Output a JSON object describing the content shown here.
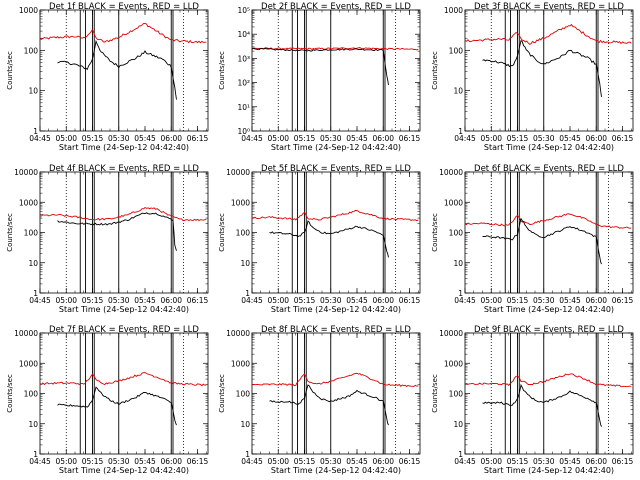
{
  "figure": {
    "xlabel": "Start Time (24-Sep-12 04:42:40)",
    "ylabel": "Counts/sec",
    "series_colors": {
      "events": "#000000",
      "lld": "#e00000"
    }
  },
  "chart_data": [
    {
      "type": "line",
      "title": "Det 1f BLACK = Events, RED = LLD",
      "xlabel": "Start Time (24-Sep-12 04:42:40)",
      "ylabel": "Counts/sec",
      "x_ticks": [
        "04:45",
        "05:00",
        "05:15",
        "05:30",
        "05:45",
        "06:00",
        "06:15"
      ],
      "xlim": [
        "04:45",
        "06:21"
      ],
      "y_scale": "log",
      "y_ticks": [
        "1",
        "10",
        "100",
        "1000"
      ],
      "ylim": [
        1,
        1000
      ],
      "dotted_vlines": [
        "05:00",
        "06:07"
      ],
      "solid_vlines": [
        "05:08",
        "05:11",
        "05:15",
        "05:16",
        "05:30",
        "06:00",
        "06:01"
      ],
      "series": [
        {
          "color": "#e00000",
          "x": [
            "04:45",
            "04:55",
            "05:05",
            "05:10",
            "05:15",
            "05:17",
            "05:22",
            "05:30",
            "05:45",
            "05:55",
            "06:00",
            "06:05",
            "06:10",
            "06:15",
            "06:20"
          ],
          "values": [
            190,
            210,
            220,
            200,
            310,
            200,
            160,
            210,
            460,
            240,
            180,
            170,
            165,
            160,
            160
          ]
        },
        {
          "color": "#000000",
          "x": [
            "04:55",
            "05:00",
            "05:05",
            "05:08",
            "05:12",
            "05:15",
            "05:17",
            "05:20",
            "05:25",
            "05:30",
            "05:40",
            "05:45",
            "05:55",
            "06:00",
            "06:02",
            "06:03"
          ],
          "values": [
            52,
            50,
            45,
            40,
            35,
            60,
            170,
            90,
            55,
            40,
            65,
            90,
            60,
            40,
            12,
            6
          ]
        }
      ]
    },
    {
      "type": "line",
      "title": "Det 2f BLACK = Events, RED = LLD",
      "xlabel": "Start Time (24-Sep-12 04:42:40)",
      "ylabel": "Counts/sec",
      "x_ticks": [
        "04:45",
        "05:00",
        "05:15",
        "05:30",
        "05:45",
        "06:00",
        "06:15"
      ],
      "xlim": [
        "04:45",
        "06:21"
      ],
      "y_scale": "log",
      "y_ticks": [
        "10⁰",
        "10¹",
        "10²",
        "10³",
        "10⁴",
        "10⁵"
      ],
      "ylim": [
        1,
        100000
      ],
      "dotted_vlines": [
        "05:00",
        "06:07"
      ],
      "solid_vlines": [
        "05:08",
        "05:11",
        "05:15",
        "05:16",
        "05:30",
        "06:00",
        "06:01"
      ],
      "series": [
        {
          "color": "#e00000",
          "x": [
            "04:45",
            "05:00",
            "05:15",
            "05:30",
            "05:45",
            "06:00",
            "06:15",
            "06:20"
          ],
          "values": [
            2600,
            2550,
            2500,
            2550,
            2700,
            2500,
            2400,
            2400
          ]
        },
        {
          "color": "#000000",
          "x": [
            "04:45",
            "05:00",
            "05:15",
            "05:30",
            "05:45",
            "06:00",
            "06:02",
            "06:03"
          ],
          "values": [
            2500,
            2300,
            2100,
            2300,
            2400,
            2200,
            200,
            80
          ]
        }
      ]
    },
    {
      "type": "line",
      "title": "Det 3f BLACK = Events, RED = LLD",
      "xlabel": "Start Time (24-Sep-12 04:42:40)",
      "ylabel": "Counts/sec",
      "x_ticks": [
        "04:45",
        "05:00",
        "05:15",
        "05:30",
        "05:45",
        "06:00",
        "06:15"
      ],
      "xlim": [
        "04:45",
        "06:21"
      ],
      "y_scale": "log",
      "y_ticks": [
        "1",
        "10",
        "100",
        "1000"
      ],
      "ylim": [
        1,
        1000
      ],
      "dotted_vlines": [
        "05:00",
        "06:07"
      ],
      "solid_vlines": [
        "05:08",
        "05:11",
        "05:15",
        "05:16",
        "05:30",
        "06:00",
        "06:01"
      ],
      "series": [
        {
          "color": "#e00000",
          "x": [
            "04:45",
            "04:55",
            "05:05",
            "05:10",
            "05:15",
            "05:17",
            "05:22",
            "05:30",
            "05:45",
            "05:55",
            "06:00",
            "06:05",
            "06:10",
            "06:15",
            "06:20"
          ],
          "values": [
            170,
            180,
            190,
            180,
            280,
            190,
            150,
            200,
            430,
            230,
            170,
            165,
            160,
            155,
            150
          ]
        },
        {
          "color": "#000000",
          "x": [
            "04:55",
            "05:00",
            "05:05",
            "05:08",
            "05:12",
            "05:15",
            "05:17",
            "05:20",
            "05:25",
            "05:30",
            "05:40",
            "05:45",
            "05:55",
            "06:00",
            "06:02",
            "06:03"
          ],
          "values": [
            58,
            55,
            50,
            45,
            40,
            70,
            180,
            100,
            60,
            45,
            70,
            100,
            65,
            45,
            14,
            7
          ]
        }
      ]
    },
    {
      "type": "line",
      "title": "Det 4f BLACK = Events, RED = LLD",
      "xlabel": "Start Time (24-Sep-12 04:42:40)",
      "ylabel": "Counts/sec",
      "x_ticks": [
        "04:45",
        "05:00",
        "05:15",
        "05:30",
        "05:45",
        "06:00",
        "06:15"
      ],
      "xlim": [
        "04:45",
        "06:21"
      ],
      "y_scale": "log",
      "y_ticks": [
        "1",
        "10",
        "100",
        "1000",
        "10000"
      ],
      "ylim": [
        1,
        10000
      ],
      "dotted_vlines": [
        "05:00",
        "06:07"
      ],
      "solid_vlines": [
        "05:08",
        "05:11",
        "05:15",
        "05:16",
        "05:30",
        "06:00",
        "06:01"
      ],
      "series": [
        {
          "color": "#e00000",
          "x": [
            "04:45",
            "04:55",
            "05:05",
            "05:15",
            "05:25",
            "05:35",
            "05:45",
            "05:52",
            "05:58",
            "06:05",
            "06:15",
            "06:20"
          ],
          "values": [
            360,
            380,
            330,
            270,
            280,
            380,
            650,
            600,
            380,
            270,
            260,
            270
          ]
        },
        {
          "color": "#000000",
          "x": [
            "04:55",
            "05:05",
            "05:15",
            "05:25",
            "05:35",
            "05:45",
            "05:52",
            "05:58",
            "06:01",
            "06:02",
            "06:03"
          ],
          "values": [
            240,
            200,
            190,
            190,
            260,
            450,
            420,
            300,
            260,
            40,
            25
          ]
        }
      ]
    },
    {
      "type": "line",
      "title": "Det 5f BLACK = Events, RED = LLD",
      "xlabel": "Start Time (24-Sep-12 04:42:40)",
      "ylabel": "Counts/sec",
      "x_ticks": [
        "04:45",
        "05:00",
        "05:15",
        "05:30",
        "05:45",
        "06:00",
        "06:15"
      ],
      "xlim": [
        "04:45",
        "06:21"
      ],
      "y_scale": "log",
      "y_ticks": [
        "1",
        "10",
        "100",
        "1000",
        "10000"
      ],
      "ylim": [
        1,
        10000
      ],
      "dotted_vlines": [
        "05:00",
        "06:07"
      ],
      "solid_vlines": [
        "05:08",
        "05:11",
        "05:15",
        "05:16",
        "05:30",
        "06:00",
        "06:01"
      ],
      "series": [
        {
          "color": "#e00000",
          "x": [
            "04:45",
            "04:55",
            "05:05",
            "05:10",
            "05:15",
            "05:17",
            "05:22",
            "05:30",
            "05:45",
            "05:55",
            "06:00",
            "06:05",
            "06:10",
            "06:15",
            "06:20"
          ],
          "values": [
            300,
            320,
            290,
            270,
            450,
            300,
            260,
            320,
            520,
            360,
            290,
            280,
            270,
            265,
            260
          ]
        },
        {
          "color": "#000000",
          "x": [
            "04:55",
            "05:00",
            "05:05",
            "05:08",
            "05:12",
            "05:15",
            "05:17",
            "05:20",
            "05:25",
            "05:30",
            "05:40",
            "05:45",
            "05:55",
            "06:00",
            "06:02",
            "06:03"
          ],
          "values": [
            100,
            95,
            90,
            85,
            75,
            100,
            230,
            140,
            100,
            90,
            130,
            160,
            110,
            80,
            25,
            15
          ]
        }
      ]
    },
    {
      "type": "line",
      "title": "Det 6f BLACK = Events, RED = LLD",
      "xlabel": "Start Time (24-Sep-12 04:42:40)",
      "ylabel": "Counts/sec",
      "x_ticks": [
        "04:45",
        "05:00",
        "05:15",
        "05:30",
        "05:45",
        "06:00",
        "06:15"
      ],
      "xlim": [
        "04:45",
        "06:21"
      ],
      "y_scale": "log",
      "y_ticks": [
        "1",
        "10",
        "100",
        "1000",
        "10000"
      ],
      "ylim": [
        1,
        10000
      ],
      "dotted_vlines": [
        "05:00",
        "06:07"
      ],
      "solid_vlines": [
        "05:08",
        "05:11",
        "05:15",
        "05:16",
        "05:30",
        "06:00",
        "06:01"
      ],
      "series": [
        {
          "color": "#e00000",
          "x": [
            "04:45",
            "04:55",
            "05:05",
            "05:10",
            "05:15",
            "05:17",
            "05:22",
            "05:30",
            "05:45",
            "05:55",
            "06:00",
            "06:05",
            "06:10",
            "06:15",
            "06:20"
          ],
          "values": [
            190,
            200,
            180,
            170,
            360,
            240,
            190,
            250,
            420,
            260,
            180,
            160,
            150,
            145,
            140
          ]
        },
        {
          "color": "#000000",
          "x": [
            "04:55",
            "05:00",
            "05:05",
            "05:08",
            "05:12",
            "05:15",
            "05:17",
            "05:20",
            "05:25",
            "05:30",
            "05:40",
            "05:45",
            "05:55",
            "06:00",
            "06:02",
            "06:03"
          ],
          "values": [
            75,
            72,
            68,
            62,
            60,
            90,
            300,
            150,
            85,
            70,
            120,
            160,
            100,
            70,
            15,
            9
          ]
        }
      ]
    },
    {
      "type": "line",
      "title": "Det 7f BLACK = Events, RED = LLD",
      "xlabel": "Start Time (24-Sep-12 04:42:40)",
      "ylabel": "Counts/sec",
      "x_ticks": [
        "04:45",
        "05:00",
        "05:15",
        "05:30",
        "05:45",
        "06:00",
        "06:15"
      ],
      "xlim": [
        "04:45",
        "06:21"
      ],
      "y_scale": "log",
      "y_ticks": [
        "1",
        "10",
        "100",
        "1000",
        "10000"
      ],
      "ylim": [
        1,
        10000
      ],
      "dotted_vlines": [
        "05:00",
        "06:07"
      ],
      "solid_vlines": [
        "05:08",
        "05:11",
        "05:15",
        "05:16",
        "05:30",
        "06:00",
        "06:01"
      ],
      "series": [
        {
          "color": "#e00000",
          "x": [
            "04:45",
            "04:55",
            "05:05",
            "05:10",
            "05:15",
            "05:17",
            "05:22",
            "05:30",
            "05:45",
            "05:55",
            "06:00",
            "06:05",
            "06:10",
            "06:15",
            "06:20"
          ],
          "values": [
            210,
            220,
            220,
            200,
            420,
            280,
            210,
            260,
            480,
            300,
            220,
            210,
            200,
            195,
            190
          ]
        },
        {
          "color": "#000000",
          "x": [
            "04:55",
            "05:00",
            "05:05",
            "05:08",
            "05:12",
            "05:15",
            "05:17",
            "05:20",
            "05:25",
            "05:30",
            "05:40",
            "05:45",
            "05:55",
            "06:00",
            "06:02",
            "06:03"
          ],
          "values": [
            42,
            40,
            40,
            38,
            36,
            60,
            170,
            100,
            60,
            45,
            75,
            110,
            70,
            50,
            14,
            9
          ]
        }
      ]
    },
    {
      "type": "line",
      "title": "Det 8f BLACK = Events, RED = LLD",
      "xlabel": "Start Time (24-Sep-12 04:42:40)",
      "ylabel": "Counts/sec",
      "x_ticks": [
        "04:45",
        "05:00",
        "05:15",
        "05:30",
        "05:45",
        "06:00",
        "06:15"
      ],
      "xlim": [
        "04:45",
        "06:21"
      ],
      "y_scale": "log",
      "y_ticks": [
        "1",
        "10",
        "100",
        "1000",
        "10000"
      ],
      "ylim": [
        1,
        10000
      ],
      "dotted_vlines": [
        "05:00",
        "06:07"
      ],
      "solid_vlines": [
        "05:08",
        "05:11",
        "05:15",
        "05:16",
        "05:30",
        "06:00",
        "06:01"
      ],
      "series": [
        {
          "color": "#e00000",
          "x": [
            "04:45",
            "04:55",
            "05:05",
            "05:10",
            "05:15",
            "05:17",
            "05:22",
            "05:30",
            "05:45",
            "05:55",
            "06:00",
            "06:05",
            "06:10",
            "06:15",
            "06:20"
          ],
          "values": [
            190,
            200,
            200,
            190,
            460,
            260,
            200,
            250,
            470,
            280,
            200,
            190,
            185,
            180,
            180
          ]
        },
        {
          "color": "#000000",
          "x": [
            "04:55",
            "05:00",
            "05:05",
            "05:08",
            "05:12",
            "05:15",
            "05:17",
            "05:20",
            "05:25",
            "05:30",
            "05:40",
            "05:45",
            "05:55",
            "06:00",
            "06:02",
            "06:03"
          ],
          "values": [
            55,
            52,
            55,
            50,
            45,
            70,
            200,
            110,
            65,
            55,
            80,
            120,
            75,
            55,
            14,
            9
          ]
        }
      ]
    },
    {
      "type": "line",
      "title": "Det 9f BLACK = Events, RED = LLD",
      "xlabel": "Start Time (24-Sep-12 04:42:40)",
      "ylabel": "Counts/sec",
      "x_ticks": [
        "04:45",
        "05:00",
        "05:15",
        "05:30",
        "05:45",
        "06:00",
        "06:15"
      ],
      "xlim": [
        "04:45",
        "06:21"
      ],
      "y_scale": "log",
      "y_ticks": [
        "1",
        "10",
        "100",
        "1000",
        "10000"
      ],
      "ylim": [
        1,
        10000
      ],
      "dotted_vlines": [
        "05:00",
        "06:07"
      ],
      "solid_vlines": [
        "05:08",
        "05:11",
        "05:15",
        "05:16",
        "05:30",
        "06:00",
        "06:01"
      ],
      "series": [
        {
          "color": "#e00000",
          "x": [
            "04:45",
            "04:55",
            "05:05",
            "05:10",
            "05:15",
            "05:17",
            "05:22",
            "05:30",
            "05:45",
            "05:55",
            "06:00",
            "06:05",
            "06:10",
            "06:15",
            "06:20"
          ],
          "values": [
            200,
            210,
            210,
            190,
            400,
            260,
            200,
            250,
            460,
            280,
            200,
            190,
            180,
            175,
            170
          ]
        },
        {
          "color": "#000000",
          "x": [
            "04:55",
            "05:00",
            "05:05",
            "05:08",
            "05:12",
            "05:15",
            "05:17",
            "05:20",
            "05:25",
            "05:30",
            "05:40",
            "05:45",
            "05:55",
            "06:00",
            "06:02",
            "06:03"
          ],
          "values": [
            50,
            48,
            50,
            45,
            42,
            65,
            180,
            100,
            60,
            50,
            80,
            115,
            70,
            50,
            13,
            8
          ]
        }
      ]
    }
  ]
}
